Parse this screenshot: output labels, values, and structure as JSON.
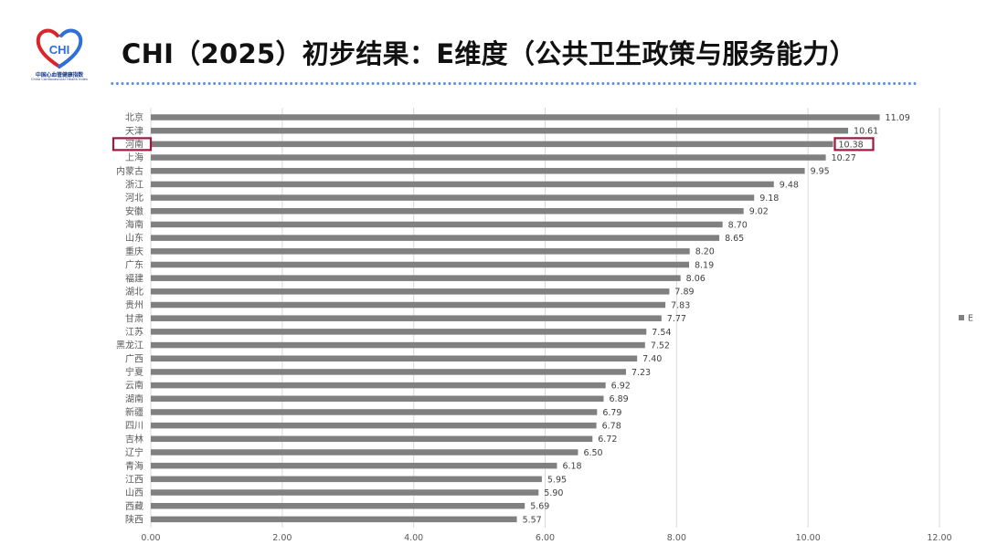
{
  "header": {
    "title": "CHI（2025）初步结果：E维度（公共卫生政策与服务能力）",
    "logo_text": "CHI",
    "logo_cn": "中国心血管健康指数",
    "logo_en": "China Cardiovascular Health Index"
  },
  "chart_data": {
    "type": "bar",
    "orientation": "horizontal",
    "categories": [
      "北京",
      "天津",
      "河南",
      "上海",
      "内蒙古",
      "浙江",
      "河北",
      "安徽",
      "海南",
      "山东",
      "重庆",
      "广东",
      "福建",
      "湖北",
      "贵州",
      "甘肃",
      "江苏",
      "黑龙江",
      "广西",
      "宁夏",
      "云南",
      "湖南",
      "新疆",
      "四川",
      "吉林",
      "辽宁",
      "青海",
      "江西",
      "山西",
      "西藏",
      "陕西"
    ],
    "series": [
      {
        "name": "E",
        "values": [
          11.09,
          10.61,
          10.38,
          10.27,
          9.95,
          9.48,
          9.18,
          9.02,
          8.7,
          8.65,
          8.2,
          8.19,
          8.06,
          7.89,
          7.83,
          7.77,
          7.54,
          7.52,
          7.4,
          7.23,
          6.92,
          6.89,
          6.79,
          6.78,
          6.72,
          6.5,
          6.18,
          5.95,
          5.9,
          5.69,
          5.57
        ],
        "color": "#808080"
      }
    ],
    "value_labels": [
      "11.09",
      "10.61",
      "10.38",
      "10.27",
      "9.95",
      "9.48",
      "9.18",
      "9.02",
      "8.70",
      "8.65",
      "8.20",
      "8.19",
      "8.06",
      "7.89",
      "7.83",
      "7.77",
      "7.54",
      "7.52",
      "7.40",
      "7.23",
      "6.92",
      "6.89",
      "6.79",
      "6.78",
      "6.72",
      "6.50",
      "6.18",
      "5.95",
      "5.90",
      "5.69",
      "5.57"
    ],
    "x_ticks": [
      "0.00",
      "2.00",
      "4.00",
      "6.00",
      "8.00",
      "10.00",
      "12.00"
    ],
    "xlim": [
      0,
      12
    ],
    "grid": true,
    "legend_position": "right",
    "highlighted_category": "河南",
    "highlight_color": "#9b1b3f"
  }
}
